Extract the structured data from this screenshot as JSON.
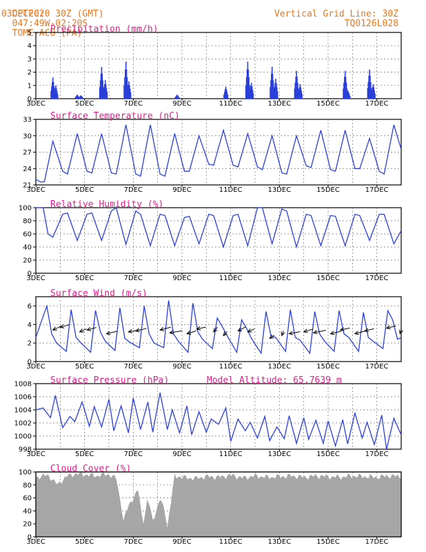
{
  "header": {
    "source": "CPTEC:",
    "coords": "047:49W-02:20S",
    "station": "TOME-ACU (PA)",
    "init_time": "03DEC2020 30Z (GMT)",
    "grid_note": "Vertical Grid Line: 30Z",
    "model_code": "TQ0126L028",
    "header_color": "#e8781e"
  },
  "colors": {
    "title": "#e0208a",
    "series": "#2a3fd8",
    "cloud": "#a6a6a6",
    "grid": "#6e6e6e"
  },
  "x_tick_labels": [
    "3DEC",
    "5DEC",
    "7DEC",
    "9DEC",
    "11DEC",
    "13DEC",
    "15DEC",
    "17DEC"
  ],
  "chart_data": [
    {
      "id": "precip",
      "type": "bar",
      "title": "Precipitation (mm/h)",
      "ylim": [
        0,
        5
      ],
      "yticks": [
        0,
        1,
        2,
        3,
        4,
        5
      ],
      "x_unit": "days since 03DEC 00Z",
      "xlim": [
        0,
        15
      ],
      "peaks": [
        {
          "x": 0.7,
          "y": 1.6
        },
        {
          "x": 0.82,
          "y": 1.0
        },
        {
          "x": 1.7,
          "y": 0.3
        },
        {
          "x": 1.85,
          "y": 0.25
        },
        {
          "x": 2.7,
          "y": 2.4
        },
        {
          "x": 2.85,
          "y": 1.4
        },
        {
          "x": 3.7,
          "y": 2.8
        },
        {
          "x": 3.82,
          "y": 1.3
        },
        {
          "x": 5.8,
          "y": 0.3
        },
        {
          "x": 7.8,
          "y": 0.9
        },
        {
          "x": 8.7,
          "y": 2.8
        },
        {
          "x": 8.85,
          "y": 1.2
        },
        {
          "x": 9.7,
          "y": 2.4
        },
        {
          "x": 9.85,
          "y": 1.5
        },
        {
          "x": 10.7,
          "y": 2.1
        },
        {
          "x": 10.85,
          "y": 1.1
        },
        {
          "x": 12.7,
          "y": 2.1
        },
        {
          "x": 12.82,
          "y": 0.6
        },
        {
          "x": 13.7,
          "y": 2.2
        },
        {
          "x": 13.85,
          "y": 1.1
        }
      ]
    },
    {
      "id": "temp",
      "type": "line",
      "title": "Surface Temperature (nC)",
      "ylim": [
        21,
        33
      ],
      "yticks": [
        21,
        24,
        27,
        30,
        33
      ],
      "xlim": [
        0,
        15
      ],
      "x": [
        0.0,
        0.2,
        0.35,
        0.7,
        1.1,
        1.3,
        1.7,
        2.1,
        2.3,
        2.7,
        3.1,
        3.3,
        3.7,
        4.1,
        4.3,
        4.7,
        5.1,
        5.3,
        5.7,
        6.1,
        6.3,
        6.7,
        7.1,
        7.3,
        7.7,
        8.1,
        8.3,
        8.7,
        9.1,
        9.3,
        9.7,
        10.1,
        10.3,
        10.7,
        11.1,
        11.3,
        11.7,
        12.1,
        12.3,
        12.7,
        13.1,
        13.3,
        13.7,
        14.1,
        14.3,
        14.7,
        15.0
      ],
      "y": [
        22.0,
        21.5,
        21.6,
        29.0,
        23.5,
        23.0,
        30.4,
        23.5,
        23.2,
        30.4,
        23.2,
        23.0,
        32.0,
        23.0,
        22.6,
        32.0,
        23.0,
        22.6,
        30.4,
        23.5,
        23.5,
        30.0,
        24.8,
        24.6,
        31.0,
        24.6,
        24.3,
        30.4,
        24.3,
        23.8,
        30.0,
        23.2,
        23.0,
        30.0,
        24.5,
        24.2,
        31.0,
        23.8,
        23.5,
        31.0,
        24.0,
        24.0,
        29.5,
        23.5,
        23.0,
        32.0,
        27.5
      ]
    },
    {
      "id": "rh",
      "type": "line",
      "title": "Relative Humidity (%)",
      "ylim": [
        0,
        100
      ],
      "yticks": [
        0,
        20,
        40,
        60,
        80,
        100
      ],
      "xlim": [
        0,
        15
      ],
      "x": [
        0.0,
        0.3,
        0.5,
        0.7,
        1.1,
        1.3,
        1.7,
        2.1,
        2.3,
        2.7,
        3.1,
        3.3,
        3.7,
        4.1,
        4.3,
        4.7,
        5.1,
        5.3,
        5.7,
        6.1,
        6.3,
        6.7,
        7.1,
        7.3,
        7.7,
        8.1,
        8.3,
        8.7,
        9.1,
        9.3,
        9.7,
        10.1,
        10.3,
        10.7,
        11.1,
        11.3,
        11.7,
        12.1,
        12.3,
        12.7,
        13.1,
        13.3,
        13.7,
        14.1,
        14.3,
        14.7,
        15.0
      ],
      "y": [
        100,
        100,
        60,
        55,
        90,
        92,
        50,
        90,
        92,
        50,
        95,
        100,
        44,
        95,
        90,
        42,
        90,
        88,
        42,
        85,
        87,
        45,
        90,
        88,
        40,
        88,
        90,
        42,
        100,
        100,
        45,
        98,
        95,
        40,
        90,
        88,
        42,
        88,
        87,
        42,
        90,
        88,
        50,
        90,
        90,
        45,
        65
      ]
    },
    {
      "id": "wind",
      "type": "line",
      "title": "Surface Wind (m/s)",
      "ylim": [
        0,
        7
      ],
      "yticks": [
        0,
        2,
        4,
        6
      ],
      "xlim": [
        0,
        15
      ],
      "x": [
        0.0,
        0.25,
        0.45,
        0.65,
        0.85,
        1.25,
        1.45,
        1.65,
        1.85,
        2.25,
        2.45,
        2.65,
        2.85,
        3.25,
        3.45,
        3.65,
        3.85,
        4.25,
        4.45,
        4.65,
        4.85,
        5.25,
        5.45,
        5.65,
        5.85,
        6.25,
        6.45,
        6.65,
        6.85,
        7.25,
        7.45,
        7.65,
        7.85,
        8.25,
        8.45,
        8.65,
        8.85,
        9.25,
        9.45,
        9.65,
        9.85,
        10.25,
        10.45,
        10.65,
        10.85,
        11.25,
        11.45,
        11.65,
        11.85,
        12.25,
        12.45,
        12.65,
        12.85,
        13.25,
        13.45,
        13.65,
        13.85,
        14.25,
        14.45,
        14.65,
        14.85,
        15.0
      ],
      "y": [
        2.6,
        4.5,
        6.0,
        3.0,
        2.0,
        1.1,
        5.6,
        2.6,
        2.0,
        1.0,
        5.5,
        3.2,
        2.2,
        1.2,
        5.8,
        2.5,
        2.1,
        1.5,
        6.0,
        3.0,
        2.0,
        1.5,
        6.6,
        3.0,
        2.2,
        1.0,
        6.3,
        3.2,
        2.4,
        1.4,
        4.7,
        3.8,
        2.8,
        1.0,
        4.5,
        3.6,
        2.5,
        0.9,
        5.4,
        2.8,
        2.6,
        1.1,
        5.6,
        2.6,
        2.3,
        0.9,
        5.4,
        3.0,
        2.2,
        1.1,
        5.5,
        3.0,
        2.6,
        1.1,
        5.3,
        2.6,
        2.2,
        1.4,
        5.5,
        4.5,
        2.4,
        2.6
      ],
      "arrows": [
        {
          "x": 0.7,
          "y": 3.4,
          "dx": 0.25,
          "dy": 0.35
        },
        {
          "x": 1.0,
          "y": 3.7,
          "dx": 0.3,
          "dy": 0.25
        },
        {
          "x": 1.8,
          "y": 3.2,
          "dx": 0.22,
          "dy": 0.3
        },
        {
          "x": 2.1,
          "y": 3.4,
          "dx": 0.3,
          "dy": 0.25
        },
        {
          "x": 2.9,
          "y": 3.0,
          "dx": 0.35,
          "dy": 0.25
        },
        {
          "x": 3.8,
          "y": 3.2,
          "dx": 0.4,
          "dy": 0.2
        },
        {
          "x": 4.1,
          "y": 3.3,
          "dx": 0.35,
          "dy": 0.25
        },
        {
          "x": 5.1,
          "y": 3.4,
          "dx": 0.35,
          "dy": 0.28
        },
        {
          "x": 5.5,
          "y": 3.1,
          "dx": 0.4,
          "dy": 0.2
        },
        {
          "x": 6.2,
          "y": 3.0,
          "dx": 0.3,
          "dy": 0.28
        },
        {
          "x": 6.6,
          "y": 3.5,
          "dx": 0.3,
          "dy": 0.2
        },
        {
          "x": 7.3,
          "y": 3.2,
          "dx": 0.12,
          "dy": 0.45
        },
        {
          "x": 7.7,
          "y": 2.8,
          "dx": 0.12,
          "dy": 0.4
        },
        {
          "x": 8.3,
          "y": 3.3,
          "dx": 0.25,
          "dy": 0.4
        },
        {
          "x": 8.7,
          "y": 3.2,
          "dx": 0.22,
          "dy": 0.3
        },
        {
          "x": 9.6,
          "y": 2.5,
          "dx": 0.15,
          "dy": 0.3
        },
        {
          "x": 10.1,
          "y": 2.8,
          "dx": 0.05,
          "dy": 0.45
        },
        {
          "x": 10.4,
          "y": 3.0,
          "dx": 0.35,
          "dy": 0.2
        },
        {
          "x": 11.0,
          "y": 3.2,
          "dx": 0.3,
          "dy": 0.28
        },
        {
          "x": 11.4,
          "y": 3.1,
          "dx": 0.4,
          "dy": 0.25
        },
        {
          "x": 12.1,
          "y": 3.0,
          "dx": 0.35,
          "dy": 0.25
        },
        {
          "x": 12.5,
          "y": 3.4,
          "dx": 0.3,
          "dy": 0.2
        },
        {
          "x": 13.1,
          "y": 3.0,
          "dx": 0.35,
          "dy": 0.28
        },
        {
          "x": 13.5,
          "y": 3.3,
          "dx": 0.3,
          "dy": 0.22
        },
        {
          "x": 14.4,
          "y": 3.6,
          "dx": 0.3,
          "dy": 0.22
        },
        {
          "x": 14.95,
          "y": 3.0,
          "dx": 0.05,
          "dy": 0.45
        }
      ]
    },
    {
      "id": "pressure",
      "type": "line",
      "title": "Surface Pressure (hPa)",
      "extra_label": "Model Altitude: 65.7639 m",
      "ylim": [
        998,
        1008
      ],
      "yticks": [
        998,
        1000,
        1002,
        1004,
        1006,
        1008
      ],
      "xlim": [
        0,
        15
      ],
      "x": [
        0.0,
        0.3,
        0.6,
        0.8,
        1.1,
        1.4,
        1.6,
        1.9,
        2.2,
        2.4,
        2.7,
        3.0,
        3.2,
        3.5,
        3.8,
        4.0,
        4.3,
        4.6,
        4.8,
        5.1,
        5.4,
        5.6,
        5.9,
        6.2,
        6.4,
        6.7,
        7.0,
        7.2,
        7.5,
        7.8,
        8.0,
        8.3,
        8.6,
        8.8,
        9.1,
        9.4,
        9.6,
        9.9,
        10.2,
        10.4,
        10.7,
        11.0,
        11.2,
        11.5,
        11.8,
        12.0,
        12.3,
        12.6,
        12.8,
        13.1,
        13.4,
        13.6,
        13.9,
        14.2,
        14.4,
        14.7,
        15.0
      ],
      "y": [
        1004.0,
        1004.3,
        1002.8,
        1006.2,
        1001.3,
        1003.0,
        1002.2,
        1005.2,
        1001.5,
        1004.5,
        1001.4,
        1005.6,
        1000.8,
        1004.6,
        1000.5,
        1005.8,
        1001.0,
        1005.2,
        1000.6,
        1006.6,
        1001.0,
        1004.0,
        1000.5,
        1004.6,
        1000.2,
        1003.7,
        1000.6,
        1002.6,
        1001.8,
        1004.3,
        999.2,
        1002.6,
        1000.8,
        1002.1,
        999.7,
        1003.0,
        999.3,
        1001.4,
        999.6,
        1003.1,
        998.9,
        1002.8,
        999.5,
        1002.4,
        998.9,
        1002.3,
        998.5,
        1002.5,
        998.8,
        1003.5,
        999.7,
        1002.1,
        998.7,
        1003.2,
        998.0,
        1002.7,
        1000.2
      ]
    },
    {
      "id": "cloud",
      "type": "area",
      "title": "Cloud Cover (%)",
      "ylim": [
        0,
        100
      ],
      "yticks": [
        0,
        20,
        40,
        60,
        80,
        100
      ],
      "xlim": [
        0,
        15
      ],
      "x": [
        0.0,
        0.5,
        0.9,
        1.0,
        1.3,
        1.6,
        2.0,
        2.5,
        2.75,
        3.0,
        3.3,
        3.5,
        3.6,
        3.8,
        4.2,
        4.4,
        4.6,
        4.8,
        5.1,
        5.3,
        5.4,
        5.7,
        6.0,
        6.5,
        7.0,
        7.5,
        8.0,
        8.5,
        9.0,
        9.5,
        10.0,
        10.5,
        11.0,
        11.5,
        12.0,
        12.5,
        13.0,
        13.5,
        14.0,
        14.5,
        15.0
      ],
      "y": [
        92,
        95,
        80,
        85,
        94,
        97,
        96,
        94,
        96,
        96,
        90,
        50,
        24,
        48,
        72,
        20,
        60,
        25,
        58,
        40,
        15,
        94,
        92,
        90,
        93,
        92,
        95,
        91,
        94,
        92,
        93,
        94,
        92,
        94,
        93,
        92,
        94,
        93,
        92,
        94,
        93
      ]
    }
  ]
}
